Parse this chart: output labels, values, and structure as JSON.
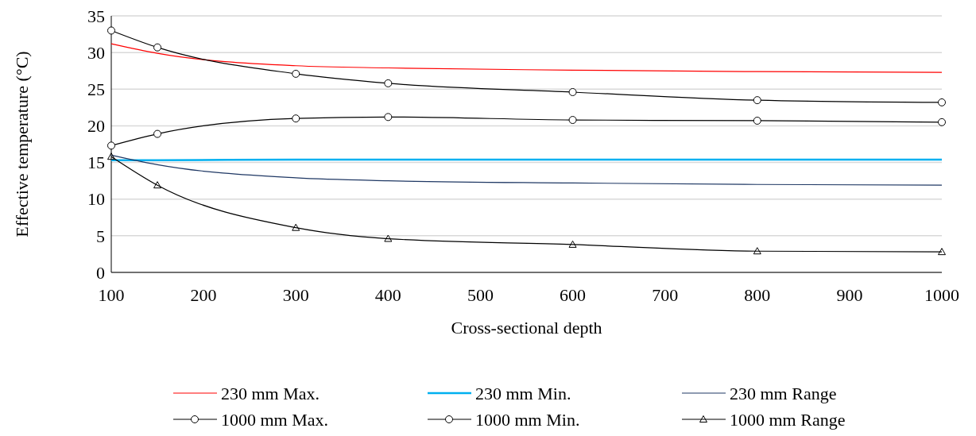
{
  "chart_data": {
    "type": "line",
    "xlabel": "Cross-sectional depth",
    "ylabel": "Effective temperature (°C)",
    "x": [
      100,
      150,
      300,
      400,
      600,
      800,
      1000
    ],
    "xlim": [
      100,
      1000
    ],
    "xticks": [
      100,
      200,
      300,
      400,
      500,
      600,
      700,
      800,
      900,
      1000
    ],
    "ylim": [
      0,
      35
    ],
    "yticks": [
      0,
      5,
      10,
      15,
      20,
      25,
      30,
      35
    ],
    "grid": "y",
    "legend": "bottom",
    "series": [
      {
        "name": "230 mm Max.",
        "color": "#ff0000",
        "marker": "none",
        "values": [
          31.2,
          29.9,
          28.2,
          27.9,
          27.6,
          27.4,
          27.3
        ]
      },
      {
        "name": "230 mm Min.",
        "color": "#00b0f0",
        "marker": "none",
        "values": [
          15.3,
          15.3,
          15.4,
          15.4,
          15.4,
          15.4,
          15.4
        ]
      },
      {
        "name": "230 mm Range",
        "color": "#1f3864",
        "marker": "none",
        "values": [
          16.0,
          14.7,
          12.9,
          12.5,
          12.2,
          12.0,
          11.9
        ]
      },
      {
        "name": "1000 mm Max.",
        "color": "#000000",
        "marker": "circle",
        "values": [
          33.0,
          30.7,
          27.1,
          25.8,
          24.6,
          23.5,
          23.2
        ]
      },
      {
        "name": "1000 mm Min.",
        "color": "#000000",
        "marker": "circle",
        "values": [
          17.3,
          18.9,
          21.0,
          21.2,
          20.8,
          20.7,
          20.5
        ]
      },
      {
        "name": "1000 mm Range",
        "color": "#000000",
        "marker": "triangle",
        "values": [
          15.8,
          11.9,
          6.1,
          4.6,
          3.8,
          2.9,
          2.8
        ]
      }
    ]
  }
}
